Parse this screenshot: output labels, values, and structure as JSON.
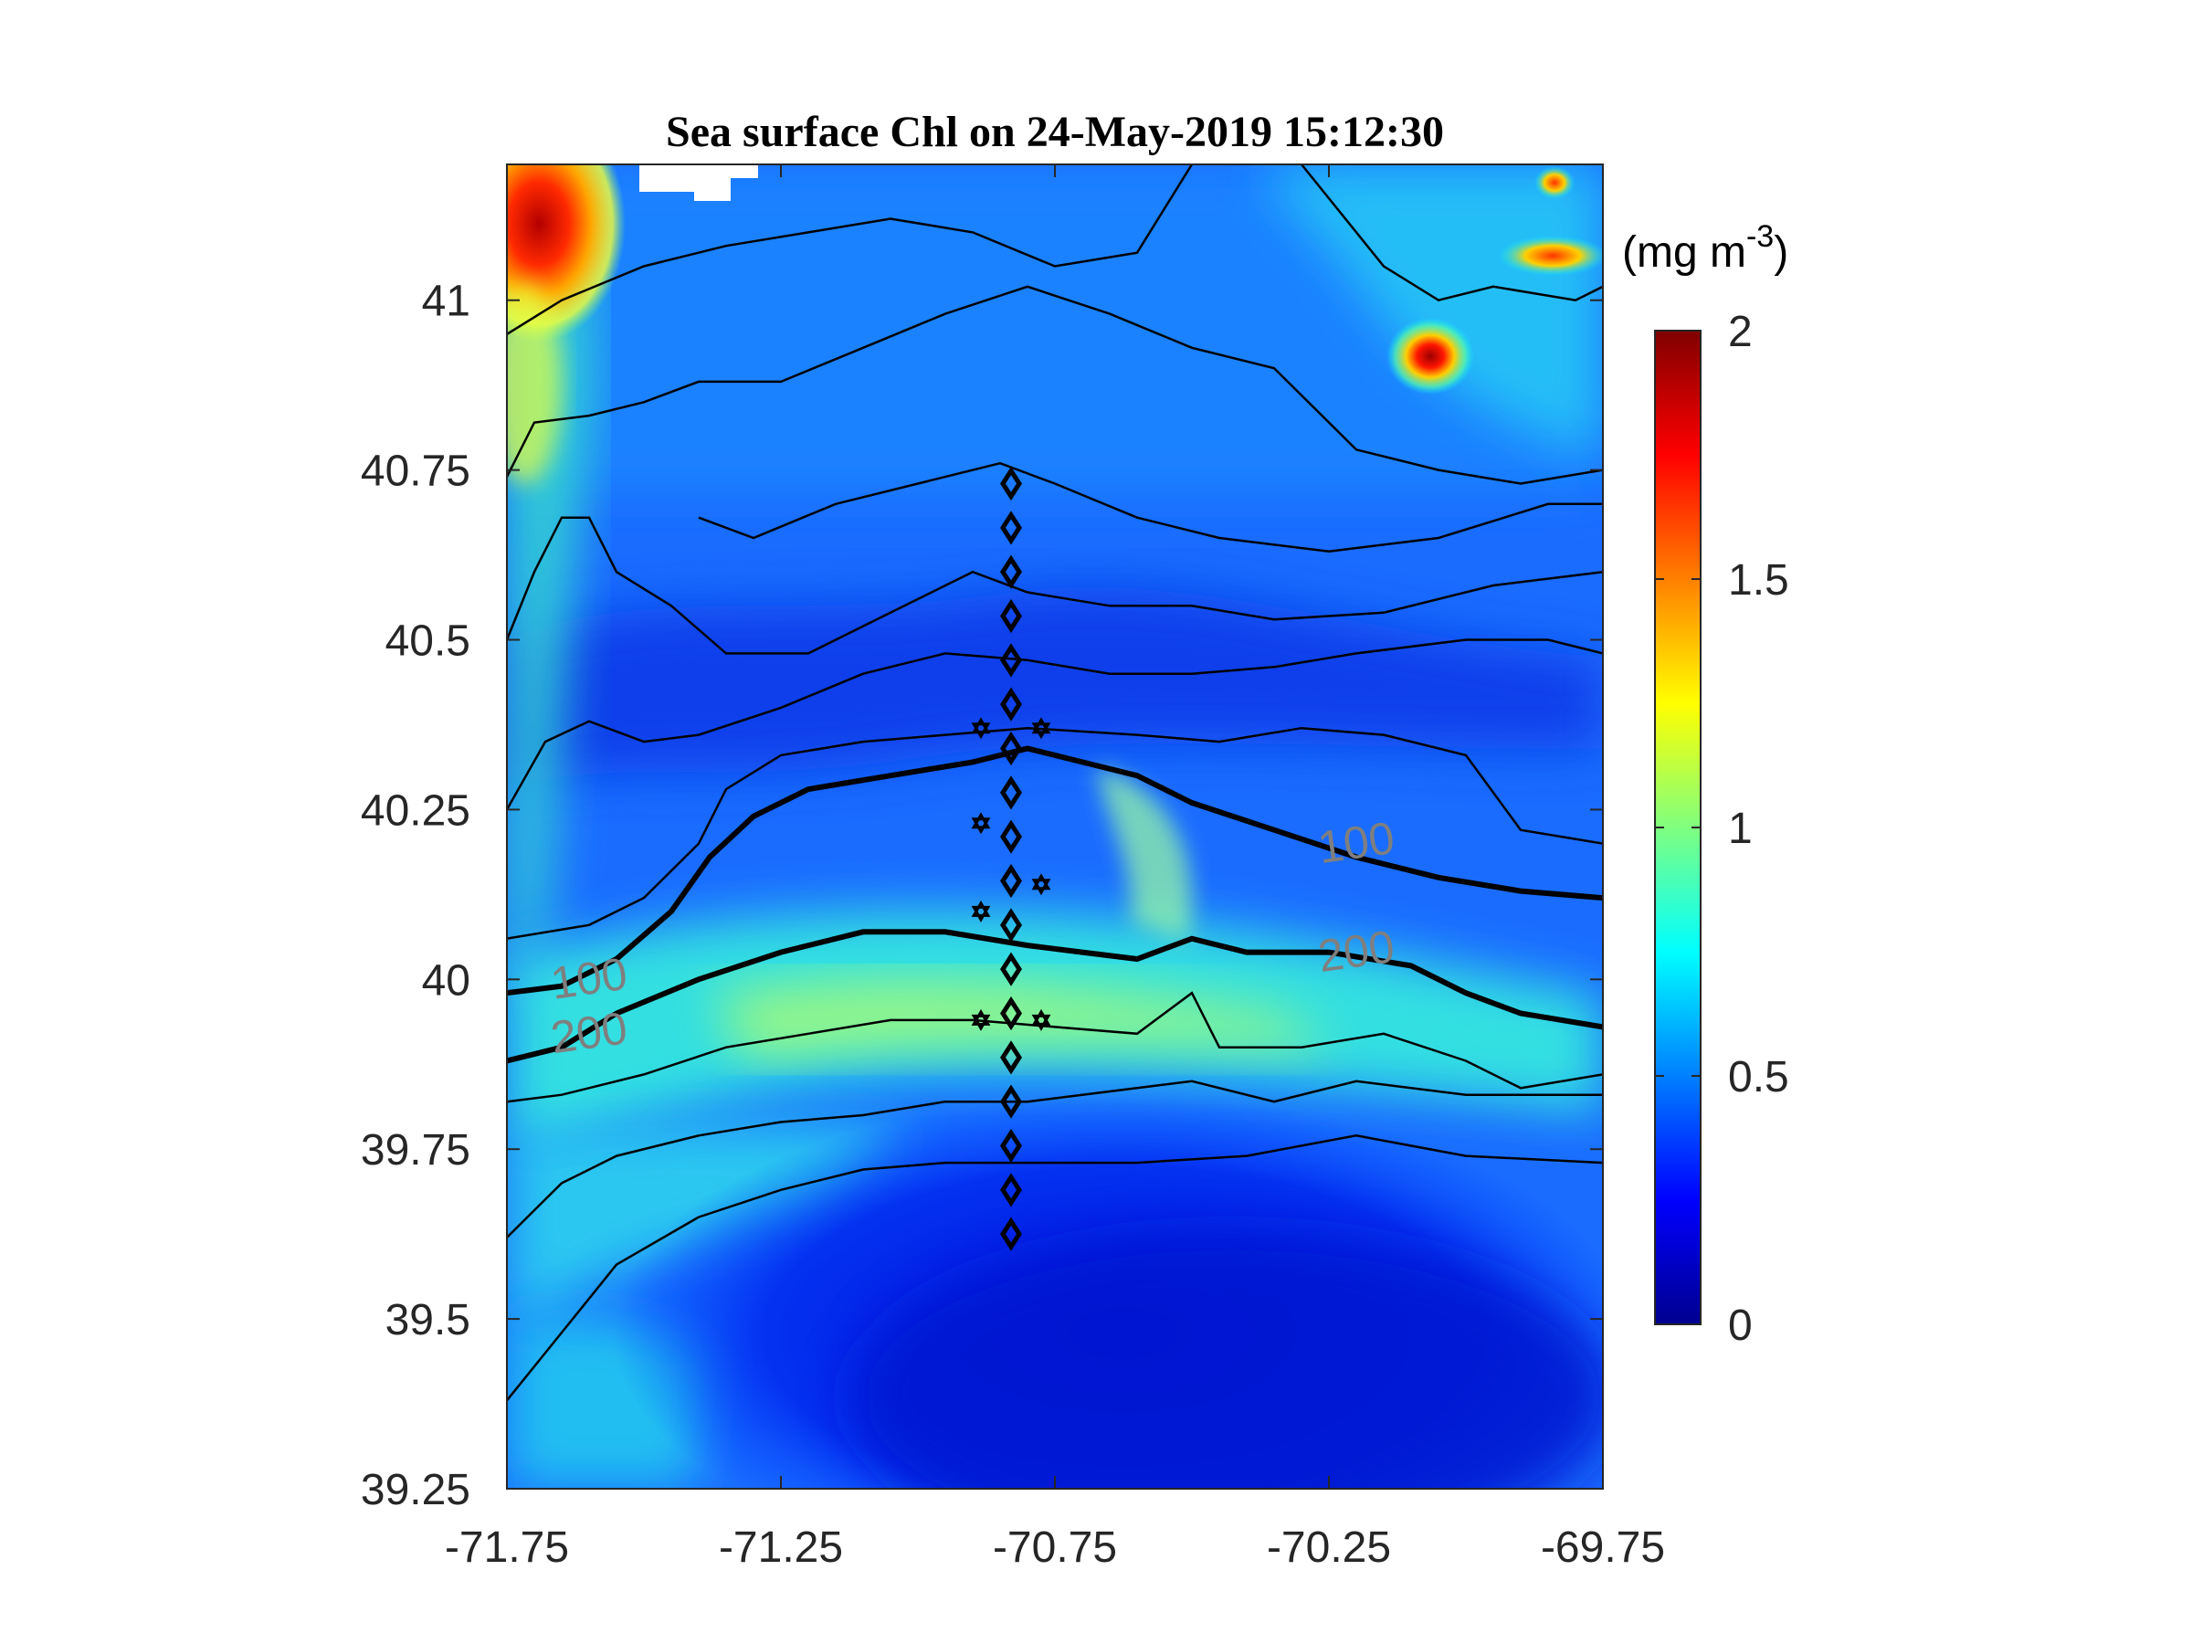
{
  "chart_data": {
    "type": "heatmap",
    "title": "Sea surface Chl on 24-May-2019 15:12:30",
    "xlabel": "",
    "ylabel": "",
    "xlim": [
      -71.75,
      -69.75
    ],
    "ylim": [
      39.25,
      41.2
    ],
    "xticks": [
      "-71.75",
      "-71.25",
      "-70.75",
      "-70.25",
      "-69.75"
    ],
    "xtick_values": [
      -71.75,
      -71.25,
      -70.75,
      -70.25,
      -69.75
    ],
    "yticks": [
      "39.25",
      "39.5",
      "39.75",
      "40",
      "40.25",
      "40.5",
      "40.75",
      "41"
    ],
    "ytick_values": [
      39.25,
      39.5,
      39.75,
      40.0,
      40.25,
      40.5,
      40.75,
      41.0
    ],
    "colorbar": {
      "colormap": "jet",
      "clim": [
        0,
        2
      ],
      "ticks": [
        "0",
        "0.5",
        "1",
        "1.5",
        "2"
      ],
      "tick_values": [
        0,
        0.5,
        1,
        1.5,
        2
      ],
      "unit_label": {
        "base": "(mg m",
        "exp": "-3",
        "close": ")"
      }
    },
    "chl_features": [
      {
        "name": "coastal-high",
        "lon": -71.7,
        "lat": 41.05,
        "chl": 1.9
      },
      {
        "name": "northeast-patch",
        "lon": -70.05,
        "lat": 40.83,
        "chl": 1.9
      },
      {
        "name": "northeast-spot",
        "lon": -69.8,
        "lat": 41.07,
        "chl": 1.4
      },
      {
        "name": "shelfbreak-band",
        "lon": -70.5,
        "lat": 39.95,
        "chl": 1.1
      },
      {
        "name": "offshore-low",
        "lon": -70.6,
        "lat": 39.45,
        "chl": 0.15
      }
    ],
    "isobath_labels": [
      {
        "text": "100",
        "lon": -71.6,
        "lat": 40.0
      },
      {
        "text": "100",
        "lon": -70.2,
        "lat": 40.2
      },
      {
        "text": "200",
        "lon": -71.6,
        "lat": 39.92
      },
      {
        "text": "200",
        "lon": -70.2,
        "lat": 40.04
      }
    ],
    "isobath_100": [
      [
        -71.75,
        39.98
      ],
      [
        -71.65,
        39.99
      ],
      [
        -71.55,
        40.03
      ],
      [
        -71.45,
        40.1
      ],
      [
        -71.38,
        40.18
      ],
      [
        -71.3,
        40.24
      ],
      [
        -71.2,
        40.28
      ],
      [
        -71.05,
        40.3
      ],
      [
        -70.9,
        40.32
      ],
      [
        -70.8,
        40.34
      ],
      [
        -70.7,
        40.32
      ],
      [
        -70.6,
        40.3
      ],
      [
        -70.5,
        40.26
      ],
      [
        -70.35,
        40.22
      ],
      [
        -70.2,
        40.18
      ],
      [
        -70.05,
        40.15
      ],
      [
        -69.9,
        40.13
      ],
      [
        -69.75,
        40.12
      ]
    ],
    "isobath_200": [
      [
        -71.75,
        39.88
      ],
      [
        -71.65,
        39.9
      ],
      [
        -71.55,
        39.95
      ],
      [
        -71.4,
        40.0
      ],
      [
        -71.25,
        40.04
      ],
      [
        -71.1,
        40.07
      ],
      [
        -70.95,
        40.07
      ],
      [
        -70.8,
        40.05
      ],
      [
        -70.7,
        40.04
      ],
      [
        -70.6,
        40.03
      ],
      [
        -70.5,
        40.06
      ],
      [
        -70.4,
        40.04
      ],
      [
        -70.25,
        40.04
      ],
      [
        -70.1,
        40.02
      ],
      [
        -70.0,
        39.98
      ],
      [
        -69.9,
        39.95
      ],
      [
        -69.75,
        39.93
      ]
    ],
    "thin_contours": [
      [
        [
          -71.75,
          39.38
        ],
        [
          -71.65,
          39.48
        ],
        [
          -71.55,
          39.58
        ],
        [
          -71.4,
          39.65
        ],
        [
          -71.25,
          39.69
        ],
        [
          -71.1,
          39.72
        ],
        [
          -70.95,
          39.73
        ],
        [
          -70.8,
          39.73
        ],
        [
          -70.6,
          39.73
        ],
        [
          -70.4,
          39.74
        ],
        [
          -70.2,
          39.77
        ],
        [
          -70.0,
          39.74
        ],
        [
          -69.75,
          39.73
        ]
      ],
      [
        [
          -71.75,
          39.62
        ],
        [
          -71.65,
          39.7
        ],
        [
          -71.55,
          39.74
        ],
        [
          -71.4,
          39.77
        ],
        [
          -71.25,
          39.79
        ],
        [
          -71.1,
          39.8
        ],
        [
          -70.95,
          39.82
        ],
        [
          -70.8,
          39.82
        ],
        [
          -70.6,
          39.84
        ],
        [
          -70.5,
          39.85
        ],
        [
          -70.35,
          39.82
        ],
        [
          -70.2,
          39.85
        ],
        [
          -70.0,
          39.83
        ],
        [
          -69.75,
          39.83
        ]
      ],
      [
        [
          -71.75,
          39.82
        ],
        [
          -71.65,
          39.83
        ],
        [
          -71.5,
          39.86
        ],
        [
          -71.35,
          39.9
        ],
        [
          -71.2,
          39.92
        ],
        [
          -71.05,
          39.94
        ],
        [
          -70.9,
          39.94
        ],
        [
          -70.75,
          39.93
        ],
        [
          -70.6,
          39.92
        ],
        [
          -70.5,
          39.98
        ],
        [
          -70.45,
          39.9
        ],
        [
          -70.3,
          39.9
        ],
        [
          -70.15,
          39.92
        ],
        [
          -70.0,
          39.88
        ],
        [
          -69.9,
          39.84
        ],
        [
          -69.75,
          39.86
        ]
      ],
      [
        [
          -71.75,
          40.06
        ],
        [
          -71.6,
          40.08
        ],
        [
          -71.5,
          40.12
        ],
        [
          -71.4,
          40.2
        ],
        [
          -71.35,
          40.28
        ],
        [
          -71.25,
          40.33
        ],
        [
          -71.1,
          40.35
        ],
        [
          -70.95,
          40.36
        ],
        [
          -70.8,
          40.37
        ],
        [
          -70.6,
          40.36
        ],
        [
          -70.45,
          40.35
        ],
        [
          -70.3,
          40.37
        ],
        [
          -70.15,
          40.36
        ],
        [
          -70.0,
          40.33
        ],
        [
          -69.9,
          40.22
        ],
        [
          -69.75,
          40.2
        ]
      ],
      [
        [
          -71.75,
          40.25
        ],
        [
          -71.68,
          40.35
        ],
        [
          -71.6,
          40.38
        ],
        [
          -71.5,
          40.35
        ],
        [
          -71.4,
          40.36
        ],
        [
          -71.25,
          40.4
        ],
        [
          -71.1,
          40.45
        ],
        [
          -70.95,
          40.48
        ],
        [
          -70.8,
          40.47
        ],
        [
          -70.65,
          40.45
        ],
        [
          -70.5,
          40.45
        ],
        [
          -70.35,
          40.46
        ],
        [
          -70.2,
          40.48
        ],
        [
          -70.0,
          40.5
        ],
        [
          -69.85,
          40.5
        ],
        [
          -69.75,
          40.48
        ]
      ],
      [
        [
          -71.75,
          40.5
        ],
        [
          -71.7,
          40.6
        ],
        [
          -71.65,
          40.68
        ],
        [
          -71.6,
          40.68
        ],
        [
          -71.55,
          40.6
        ],
        [
          -71.45,
          40.55
        ],
        [
          -71.35,
          40.48
        ],
        [
          -71.2,
          40.48
        ],
        [
          -71.05,
          40.54
        ],
        [
          -70.9,
          40.6
        ],
        [
          -70.8,
          40.57
        ],
        [
          -70.65,
          40.55
        ],
        [
          -70.5,
          40.55
        ],
        [
          -70.35,
          40.53
        ],
        [
          -70.15,
          40.54
        ],
        [
          -69.95,
          40.58
        ],
        [
          -69.75,
          40.6
        ]
      ],
      [
        [
          -71.4,
          40.68
        ],
        [
          -71.3,
          40.65
        ],
        [
          -71.15,
          40.7
        ],
        [
          -71.0,
          40.73
        ],
        [
          -70.85,
          40.76
        ],
        [
          -70.75,
          40.73
        ],
        [
          -70.6,
          40.68
        ],
        [
          -70.45,
          40.65
        ],
        [
          -70.25,
          40.63
        ],
        [
          -70.05,
          40.65
        ],
        [
          -69.85,
          40.7
        ],
        [
          -69.75,
          40.7
        ]
      ],
      [
        [
          -71.75,
          40.74
        ],
        [
          -71.7,
          40.82
        ],
        [
          -71.6,
          40.83
        ],
        [
          -71.5,
          40.85
        ],
        [
          -71.4,
          40.88
        ],
        [
          -71.25,
          40.88
        ],
        [
          -71.1,
          40.93
        ],
        [
          -70.95,
          40.98
        ],
        [
          -70.8,
          41.02
        ],
        [
          -70.65,
          40.98
        ],
        [
          -70.5,
          40.93
        ],
        [
          -70.35,
          40.9
        ],
        [
          -70.2,
          40.78
        ],
        [
          -70.05,
          40.75
        ],
        [
          -69.9,
          40.73
        ],
        [
          -69.75,
          40.75
        ]
      ],
      [
        [
          -71.75,
          40.95
        ],
        [
          -71.65,
          41.0
        ],
        [
          -71.5,
          41.05
        ],
        [
          -71.35,
          41.08
        ],
        [
          -71.2,
          41.1
        ],
        [
          -71.05,
          41.12
        ],
        [
          -70.9,
          41.1
        ],
        [
          -70.75,
          41.05
        ],
        [
          -70.6,
          41.07
        ],
        [
          -70.5,
          41.2
        ]
      ],
      [
        [
          -70.3,
          41.2
        ],
        [
          -70.15,
          41.05
        ],
        [
          -70.05,
          41.0
        ],
        [
          -69.95,
          41.02
        ],
        [
          -69.8,
          41.0
        ],
        [
          -69.75,
          41.02
        ]
      ]
    ],
    "ctd_stations": [
      {
        "lon": -70.83,
        "lat": 40.73
      },
      {
        "lon": -70.83,
        "lat": 40.665
      },
      {
        "lon": -70.83,
        "lat": 40.6
      },
      {
        "lon": -70.83,
        "lat": 40.535
      },
      {
        "lon": -70.83,
        "lat": 40.47
      },
      {
        "lon": -70.83,
        "lat": 40.405
      },
      {
        "lon": -70.83,
        "lat": 40.34
      },
      {
        "lon": -70.83,
        "lat": 40.275
      },
      {
        "lon": -70.83,
        "lat": 40.21
      },
      {
        "lon": -70.83,
        "lat": 40.145
      },
      {
        "lon": -70.83,
        "lat": 40.08
      },
      {
        "lon": -70.83,
        "lat": 40.015
      },
      {
        "lon": -70.83,
        "lat": 39.95
      },
      {
        "lon": -70.83,
        "lat": 39.885
      },
      {
        "lon": -70.83,
        "lat": 39.82
      },
      {
        "lon": -70.83,
        "lat": 39.755
      },
      {
        "lon": -70.83,
        "lat": 39.69
      },
      {
        "lon": -70.83,
        "lat": 39.625
      }
    ],
    "mooring_stations": [
      {
        "lon": -70.885,
        "lat": 40.37
      },
      {
        "lon": -70.775,
        "lat": 40.37
      },
      {
        "lon": -70.885,
        "lat": 40.23
      },
      {
        "lon": -70.775,
        "lat": 40.14
      },
      {
        "lon": -70.885,
        "lat": 40.1
      },
      {
        "lon": -70.885,
        "lat": 39.94
      },
      {
        "lon": -70.775,
        "lat": 39.94
      }
    ]
  }
}
